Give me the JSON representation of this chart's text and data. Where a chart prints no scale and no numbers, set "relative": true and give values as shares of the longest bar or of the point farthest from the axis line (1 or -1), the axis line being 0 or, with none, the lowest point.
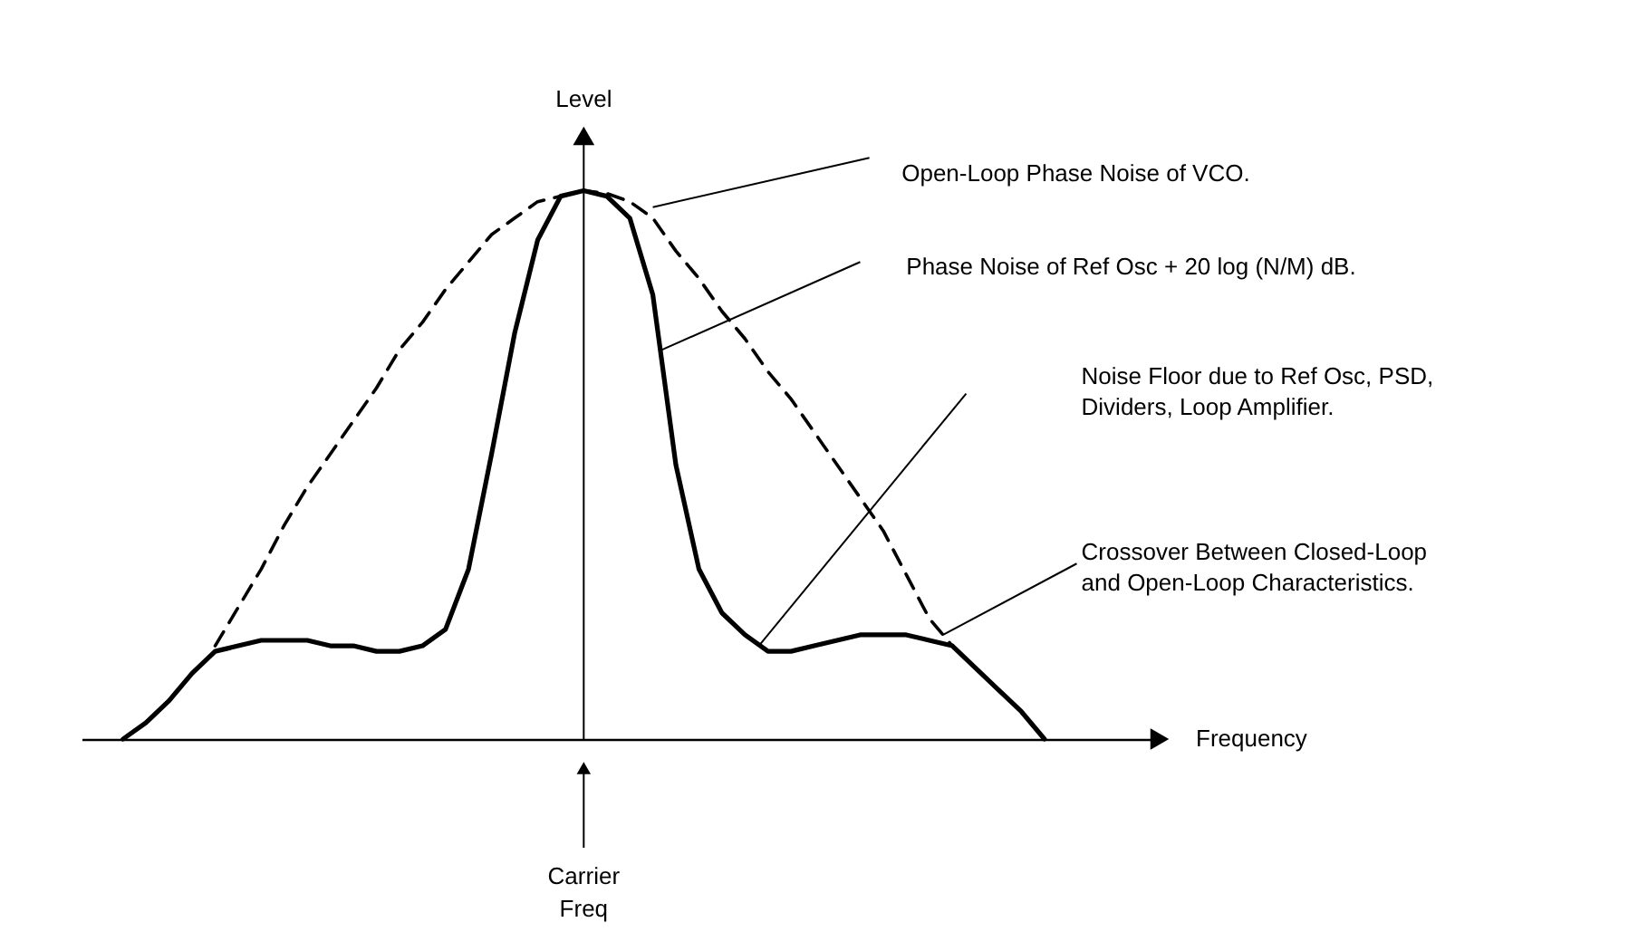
{
  "chart_data": {
    "type": "line",
    "relative": true,
    "ylabel": "Level",
    "categories": [
      null,
      null,
      null,
      null,
      null,
      null,
      null,
      null,
      null,
      null,
      null,
      null,
      null,
      null,
      null,
      null,
      null,
      null,
      null,
      null,
      null,
      null,
      null,
      null,
      null,
      null,
      null,
      null,
      null,
      null,
      null,
      null,
      null,
      null,
      null,
      null,
      null,
      null,
      null,
      null,
      null
    ],
    "series": [
      {
        "color": "#000000",
        "line_style": "solid",
        "values": [
          0,
          0.03,
          0.07,
          0.12,
          0.16,
          0.17,
          0.18,
          0.18,
          0.18,
          0.17,
          0.17,
          0.16,
          0.16,
          0.17,
          0.2,
          0.31,
          0.52,
          0.74,
          0.91,
          0.99,
          1,
          0.99,
          0.95,
          0.81,
          0.5,
          0.31,
          0.23,
          0.19,
          0.16,
          0.16,
          0.17,
          0.18,
          0.19,
          0.19,
          0.19,
          0.18,
          0.17,
          0.13,
          0.09,
          0.05,
          0
        ]
      },
      {
        "color": "#000000",
        "line_style": "dashed",
        "values": [
          null,
          null,
          null,
          null,
          0.17,
          0.24,
          0.31,
          0.39,
          0.46,
          0.52,
          0.58,
          0.64,
          0.71,
          0.76,
          0.82,
          0.87,
          0.92,
          0.95,
          0.98,
          0.99,
          1,
          0.995,
          0.98,
          0.95,
          0.89,
          0.84,
          0.78,
          0.73,
          0.67,
          0.62,
          0.56,
          0.5,
          0.44,
          0.38,
          0.3,
          0.22,
          0.17,
          null,
          null,
          null,
          null
        ]
      }
    ],
    "annotations": [
      "Open-Loop Phase Noise of VCO.",
      "Phase Noise of Ref Osc + 20 log (N/M) dB.",
      "Noise Floor due to Ref Osc, PSD,\nDividers, Loop Amplifier.",
      "Crossover Between Closed-Loop\nand Open-Loop Characteristics.",
      "Carrier\nFreq",
      "Frequency"
    ]
  }
}
